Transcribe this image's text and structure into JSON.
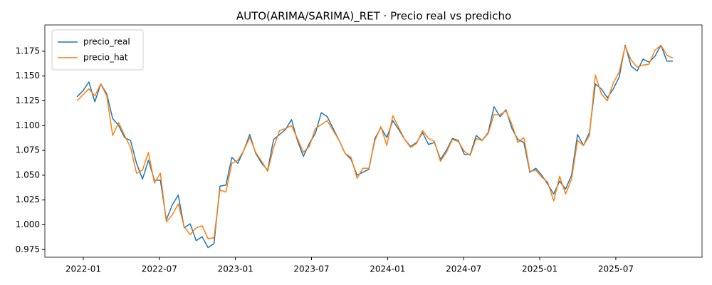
{
  "chart_data": {
    "type": "line",
    "title": "AUTO(ARIMA/SARIMA)_RET · Precio real vs predicho",
    "x": [
      -0.5,
      -0.03,
      0.44,
      0.91,
      1.38,
      1.85,
      2.32,
      2.79,
      3.26,
      3.73,
      4.2,
      4.67,
      5.14,
      5.61,
      6.08,
      6.55,
      7.02,
      7.49,
      7.96,
      8.43,
      8.9,
      9.37,
      9.84,
      10.31,
      10.78,
      11.25,
      11.72,
      12.19,
      12.66,
      13.13,
      13.6,
      14.07,
      14.54,
      15.01,
      15.48,
      15.95,
      16.42,
      16.89,
      17.36,
      17.83,
      18.3,
      18.77,
      19.24,
      19.71,
      20.18,
      20.65,
      21.12,
      21.59,
      22.06,
      22.53,
      23.0,
      23.47,
      23.94,
      24.41,
      24.88,
      25.35,
      25.82,
      26.29,
      26.76,
      27.23,
      27.7,
      28.17,
      28.64,
      29.11,
      29.58,
      30.05,
      30.52,
      30.99,
      31.46,
      31.93,
      32.4,
      32.87,
      33.34,
      33.81,
      34.28,
      34.75,
      35.22,
      35.69,
      36.16,
      36.63,
      37.1,
      37.57,
      38.04,
      38.51,
      38.98,
      39.45,
      39.92,
      40.39,
      40.86,
      41.33,
      41.8,
      42.27,
      42.74,
      43.21,
      43.68,
      44.15,
      44.62,
      45.09,
      45.56,
      46.03,
      46.5
    ],
    "series": [
      {
        "name": "precio_real",
        "color": "#1f77b4",
        "values": [
          1.129,
          1.135,
          1.144,
          1.124,
          1.142,
          1.132,
          1.107,
          1.1,
          1.088,
          1.085,
          1.062,
          1.046,
          1.065,
          1.045,
          1.045,
          1.005,
          1.02,
          1.03,
          0.997,
          1.001,
          0.984,
          0.988,
          0.977,
          0.981,
          1.039,
          1.04,
          1.068,
          1.062,
          1.075,
          1.091,
          1.072,
          1.062,
          1.055,
          1.086,
          1.091,
          1.096,
          1.106,
          1.085,
          1.069,
          1.082,
          1.092,
          1.113,
          1.109,
          1.097,
          1.085,
          1.072,
          1.066,
          1.05,
          1.053,
          1.056,
          1.087,
          1.098,
          1.088,
          1.105,
          1.096,
          1.086,
          1.079,
          1.083,
          1.093,
          1.081,
          1.083,
          1.066,
          1.075,
          1.087,
          1.085,
          1.071,
          1.071,
          1.09,
          1.085,
          1.093,
          1.119,
          1.109,
          1.116,
          1.097,
          1.086,
          1.083,
          1.053,
          1.057,
          1.05,
          1.041,
          1.031,
          1.044,
          1.036,
          1.05,
          1.091,
          1.08,
          1.093,
          1.142,
          1.137,
          1.128,
          1.137,
          1.149,
          1.181,
          1.16,
          1.155,
          1.167,
          1.164,
          1.17,
          1.181,
          1.165,
          1.165
        ]
      },
      {
        "name": "precio_hat",
        "color": "#ff7f0e",
        "values": [
          1.125,
          1.131,
          1.137,
          1.13,
          1.142,
          1.13,
          1.09,
          1.103,
          1.09,
          1.078,
          1.052,
          1.055,
          1.073,
          1.042,
          1.052,
          1.003,
          1.01,
          1.021,
          0.998,
          0.99,
          0.997,
          0.999,
          0.986,
          0.987,
          1.035,
          1.033,
          1.062,
          1.065,
          1.075,
          1.088,
          1.073,
          1.064,
          1.054,
          1.078,
          1.095,
          1.097,
          1.1,
          1.087,
          1.073,
          1.079,
          1.097,
          1.101,
          1.105,
          1.095,
          1.085,
          1.072,
          1.068,
          1.047,
          1.057,
          1.057,
          1.085,
          1.099,
          1.08,
          1.11,
          1.098,
          1.086,
          1.078,
          1.082,
          1.095,
          1.087,
          1.084,
          1.064,
          1.073,
          1.086,
          1.084,
          1.074,
          1.07,
          1.087,
          1.085,
          1.092,
          1.111,
          1.111,
          1.115,
          1.101,
          1.083,
          1.088,
          1.054,
          1.055,
          1.048,
          1.043,
          1.024,
          1.049,
          1.031,
          1.046,
          1.085,
          1.08,
          1.09,
          1.151,
          1.132,
          1.125,
          1.143,
          1.154,
          1.18,
          1.166,
          1.159,
          1.161,
          1.162,
          1.176,
          1.181,
          1.171,
          1.168
        ]
      }
    ],
    "xlim": [
      -3.03,
      48.8
    ],
    "xticks": [
      {
        "value": 0,
        "label": "2022-01"
      },
      {
        "value": 6,
        "label": "2022-07"
      },
      {
        "value": 12,
        "label": "2023-01"
      },
      {
        "value": 18,
        "label": "2023-07"
      },
      {
        "value": 24,
        "label": "2024-01"
      },
      {
        "value": 30,
        "label": "2024-07"
      },
      {
        "value": 36,
        "label": "2025-01"
      },
      {
        "value": 42,
        "label": "2025-07"
      }
    ],
    "ylim": [
      0.9673,
      1.2015
    ],
    "yticks": [
      0.975,
      {
        "value": 1.0,
        "label": "1.000"
      },
      1.025,
      {
        "value": 1.05,
        "label": "1.050"
      },
      1.075,
      {
        "value": 1.1,
        "label": "1.100"
      },
      1.125,
      {
        "value": 1.15,
        "label": "1.150"
      },
      1.175
    ],
    "legend": "upper left",
    "grid": false
  }
}
